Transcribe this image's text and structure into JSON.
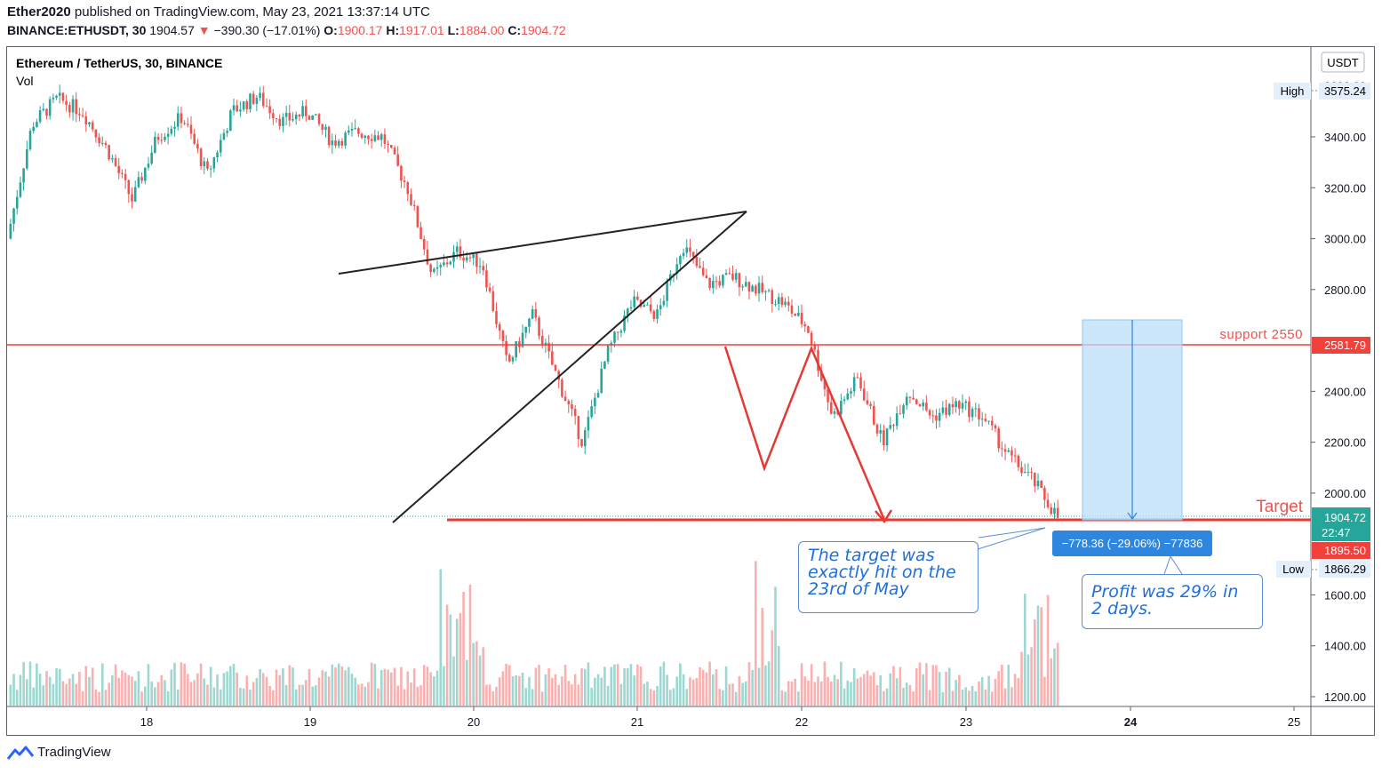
{
  "header": {
    "publisher": "Ether2020",
    "published_text": "published on TradingView.com, May 23, 2021 13:37:14 UTC",
    "symbol": "BINANCE:ETHUSDT, 30",
    "last": "1904.57",
    "change_arrow": "▼",
    "change": "−390.30 (−17.01%)",
    "o_label": "O:",
    "o": "1900.17",
    "h_label": "H:",
    "h": "1917.01",
    "l_label": "L:",
    "l": "1884.00",
    "c_label": "C:",
    "c": "1904.72"
  },
  "chart_title": "Ethereum / TetherUS, 30, BINANCE",
  "vol_label": "Vol",
  "currency": "USDT",
  "price_axis": {
    "ticks": [
      "3400.00",
      "3200.00",
      "3000.00",
      "2800.00",
      "2400.00",
      "2200.00",
      "2000.00",
      "1600.00",
      "1400.00",
      "1200.00"
    ],
    "top_partial": "3600.00"
  },
  "time_axis": {
    "ticks": [
      "18",
      "19",
      "20",
      "21",
      "22",
      "23",
      "24",
      "25"
    ]
  },
  "labels": {
    "high_label": "High",
    "high_value": "3575.24",
    "low_label": "Low",
    "low_value": "1866.29",
    "support_value": "2581.79",
    "current_price": "1904.72",
    "countdown": "22:47",
    "target_price_tag": "1895.50",
    "measure": "−778.36 (−29.06%) −77836"
  },
  "annotations": {
    "support_text": "support 2550",
    "target_text": "Target",
    "note1": "The target was exactly hit on the 23rd of May",
    "note2": "Profit was 29% in 2 days."
  },
  "footer": {
    "brand": "TradingView"
  },
  "colors": {
    "up": "#26a69a",
    "down": "#ef5350",
    "support_line": "#f0413c",
    "measure_box": "#2e86de",
    "projection_fill": "#bbdefb"
  },
  "chart_data": {
    "type": "candlestick",
    "symbol": "ETHUSDT",
    "interval": "30",
    "ylim": [
      1150,
      3700
    ],
    "x_ticks": [
      "18",
      "19",
      "20",
      "21",
      "22",
      "23",
      "24",
      "25"
    ],
    "price_path": [
      [
        "17",
        3000
      ],
      [
        "17",
        3450
      ],
      [
        "17",
        3550
      ],
      [
        "17",
        3500
      ],
      [
        "17",
        3350
      ],
      [
        "18",
        3150
      ],
      [
        "18",
        3400
      ],
      [
        "18",
        3480
      ],
      [
        "18",
        3250
      ],
      [
        "18",
        3500
      ],
      [
        "18",
        3560
      ],
      [
        "18",
        3460
      ],
      [
        "18",
        3500
      ],
      [
        "19",
        3380
      ],
      [
        "19",
        3420
      ],
      [
        "19",
        3400
      ],
      [
        "19",
        3200
      ],
      [
        "19",
        2850
      ],
      [
        "19",
        2950
      ],
      [
        "19",
        2900
      ],
      [
        "19",
        2500
      ],
      [
        "20",
        2700
      ],
      [
        "20",
        2450
      ],
      [
        "20",
        2200
      ],
      [
        "20",
        2550
      ],
      [
        "20",
        2750
      ],
      [
        "20",
        2700
      ],
      [
        "20",
        2980
      ],
      [
        "21",
        2820
      ],
      [
        "21",
        2850
      ],
      [
        "21",
        2800
      ],
      [
        "21",
        2750
      ],
      [
        "21",
        2650
      ],
      [
        "22",
        2300
      ],
      [
        "22",
        2450
      ],
      [
        "22",
        2200
      ],
      [
        "22",
        2400
      ],
      [
        "22",
        2300
      ],
      [
        "23",
        2350
      ],
      [
        "23",
        2300
      ],
      [
        "23",
        2150
      ],
      [
        "23",
        2050
      ],
      [
        "23",
        1905
      ]
    ],
    "support_level": 2581.79,
    "target_level": 1895.5,
    "high": 3575.24,
    "low": 1866.29,
    "last": 1904.72,
    "measured_move": "−778.36 (−29.06%) −77836"
  }
}
